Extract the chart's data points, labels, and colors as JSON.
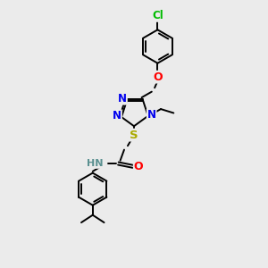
{
  "bg_color": "#ebebeb",
  "atom_colors": {
    "C": "#000000",
    "N": "#0000ee",
    "O": "#ff0000",
    "S": "#aaaa00",
    "Cl": "#00bb00",
    "H": "#5a9090"
  },
  "bond_color": "#000000",
  "figsize": [
    3.0,
    3.0
  ],
  "dpi": 100
}
